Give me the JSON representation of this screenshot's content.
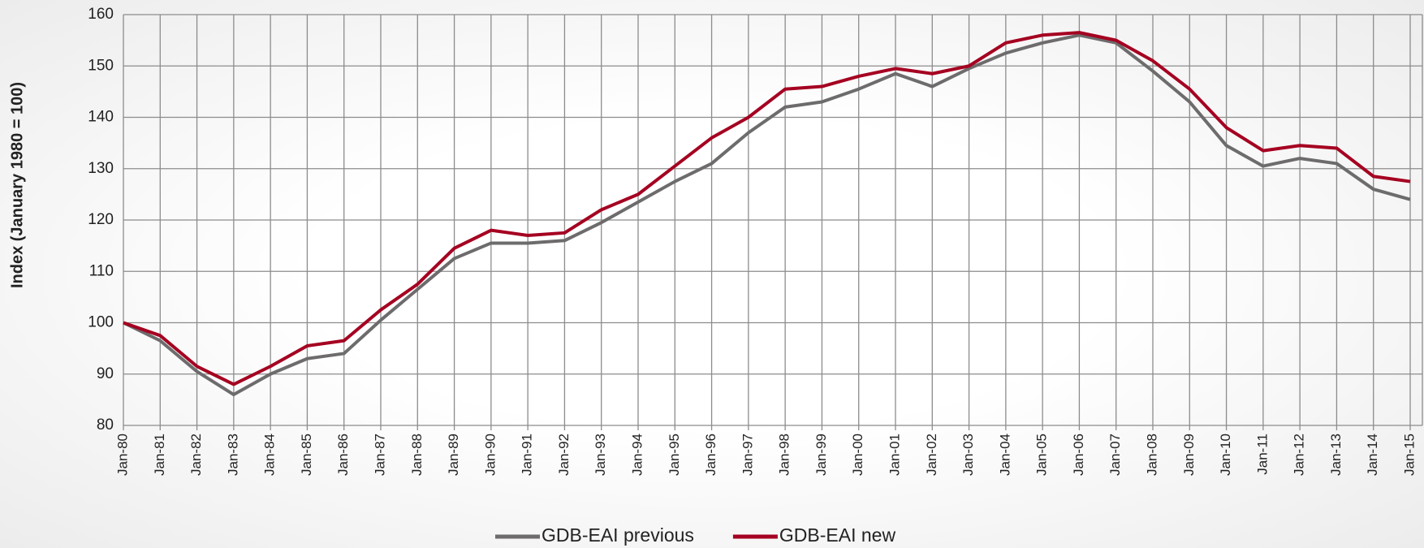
{
  "chart_data": {
    "type": "line",
    "y_label": "Index (January 1980 = 100)",
    "categories": [
      "Jan-80",
      "Jan-81",
      "Jan-82",
      "Jan-83",
      "Jan-84",
      "Jan-85",
      "Jan-86",
      "Jan-87",
      "Jan-88",
      "Jan-89",
      "Jan-90",
      "Jan-91",
      "Jan-92",
      "Jan-93",
      "Jan-94",
      "Jan-95",
      "Jan-96",
      "Jan-97",
      "Jan-98",
      "Jan-99",
      "Jan-00",
      "Jan-01",
      "Jan-02",
      "Jan-03",
      "Jan-04",
      "Jan-05",
      "Jan-06",
      "Jan-07",
      "Jan-08",
      "Jan-09",
      "Jan-10",
      "Jan-11",
      "Jan-12",
      "Jan-13",
      "Jan-14",
      "Jan-15"
    ],
    "series": [
      {
        "name": "GDB-EAI previous",
        "color": "#6d6b6c",
        "values": [
          100,
          96.5,
          90.5,
          86,
          90,
          93,
          94,
          100.5,
          106.5,
          112.5,
          115.5,
          115.5,
          116,
          119.5,
          123.5,
          127.5,
          131,
          137,
          142,
          143,
          145.5,
          148.5,
          146,
          149.5,
          152.5,
          154.5,
          156,
          154.5,
          149,
          143,
          134.5,
          130.5,
          132,
          131,
          126,
          124
        ]
      },
      {
        "name": "GDB-EAI new",
        "color": "#a50021",
        "values": [
          100,
          97.5,
          91.5,
          88,
          91.5,
          95.5,
          96.5,
          102.5,
          107.5,
          114.5,
          118,
          117,
          117.5,
          122,
          125,
          130.5,
          136,
          140,
          145.5,
          146,
          148,
          149.5,
          148.5,
          150,
          154.5,
          156,
          156.5,
          155,
          151,
          145.5,
          138,
          133.5,
          134.5,
          134,
          128.5,
          127.5
        ]
      }
    ],
    "ylim": [
      80,
      160
    ],
    "yticks": [
      80,
      90,
      100,
      110,
      120,
      130,
      140,
      150,
      160
    ],
    "grid": true,
    "legend": "bottom"
  }
}
